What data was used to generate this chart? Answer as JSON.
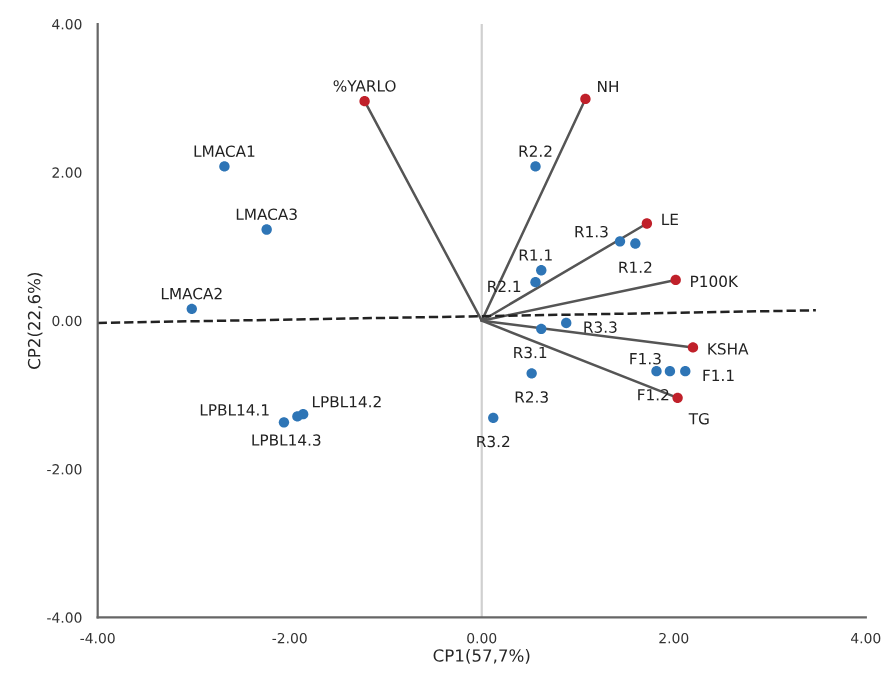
{
  "chart_data": {
    "type": "scatter",
    "xlabel": "CP1(57,7%)",
    "ylabel": "CP2(22,6%)",
    "xlim": [
      -4,
      4
    ],
    "ylim": [
      -4,
      4
    ],
    "xticks": [
      {
        "value": -4,
        "label": "-4.00"
      },
      {
        "value": -2,
        "label": "-2.00"
      },
      {
        "value": 0,
        "label": "0.00"
      },
      {
        "value": 2,
        "label": "2.00"
      },
      {
        "value": 4,
        "label": "4.00"
      }
    ],
    "yticks": [
      {
        "value": -4,
        "label": "-4.00"
      },
      {
        "value": -2,
        "label": "-2.00"
      },
      {
        "value": 0,
        "label": "0.00"
      },
      {
        "value": 2,
        "label": "2.00"
      },
      {
        "value": 4,
        "label": "4.00"
      }
    ],
    "grid": false,
    "legend": false,
    "ref_lines": [
      {
        "axis": "x",
        "value": 0,
        "color": "#d0d0d0"
      }
    ],
    "series": [
      {
        "type": "line",
        "color": "#555555",
        "x": [
          0,
          -1.22
        ],
        "values": [
          0,
          2.96
        ]
      },
      {
        "type": "line",
        "color": "#555555",
        "x": [
          0,
          1.08
        ],
        "values": [
          0,
          2.99
        ]
      },
      {
        "type": "line",
        "color": "#555555",
        "x": [
          0,
          1.72
        ],
        "values": [
          0,
          1.31
        ]
      },
      {
        "type": "line",
        "color": "#555555",
        "x": [
          0,
          2.02
        ],
        "values": [
          0,
          0.55
        ]
      },
      {
        "type": "line",
        "color": "#555555",
        "x": [
          0,
          2.2
        ],
        "values": [
          0,
          -0.36
        ]
      },
      {
        "type": "line",
        "color": "#555555",
        "x": [
          0,
          2.04
        ],
        "values": [
          0,
          -1.04
        ]
      },
      {
        "type": "line",
        "color": "#222222",
        "line_style": "dashed",
        "x": [
          -4,
          3.48
        ],
        "values": [
          -0.03,
          0.14
        ]
      },
      {
        "marker": "circle",
        "color": "#c0202a",
        "x": [
          -1.22,
          1.08,
          1.72,
          2.02,
          2.2,
          2.04
        ],
        "values": [
          2.96,
          2.99,
          1.31,
          0.55,
          -0.36,
          -1.04
        ]
      },
      {
        "marker": "circle",
        "color": "#2e75b6",
        "x": [
          -2.68,
          -2.24,
          -3.02,
          0.56,
          1.44,
          1.6,
          0.62,
          0.56,
          0.88,
          0.62,
          0.52,
          0.12,
          1.82,
          2.12,
          1.96,
          -1.86,
          -2.06,
          -1.92
        ],
        "values": [
          2.08,
          1.23,
          0.16,
          2.08,
          1.07,
          1.04,
          0.68,
          0.52,
          -0.03,
          -0.11,
          -0.71,
          -1.31,
          -0.68,
          -0.68,
          -0.68,
          -1.26,
          -1.37,
          -1.29
        ]
      }
    ],
    "annotations": [
      {
        "text": "%YARLO",
        "x": -1.22,
        "y": 2.96
      },
      {
        "text": "NH",
        "x": 1.08,
        "y": 2.99
      },
      {
        "text": "LE",
        "x": 1.72,
        "y": 1.31
      },
      {
        "text": "P100K",
        "x": 2.02,
        "y": 0.55
      },
      {
        "text": "KSHA",
        "x": 2.2,
        "y": -0.36
      },
      {
        "text": "TG",
        "x": 2.04,
        "y": -1.04
      },
      {
        "text": "LMACA1",
        "x": -2.68,
        "y": 2.08
      },
      {
        "text": "LMACA3",
        "x": -2.24,
        "y": 1.23
      },
      {
        "text": "LMACA2",
        "x": -3.02,
        "y": 0.16
      },
      {
        "text": "R2.2",
        "x": 0.56,
        "y": 2.08
      },
      {
        "text": "R1.3",
        "x": 1.44,
        "y": 1.07
      },
      {
        "text": "R1.2",
        "x": 1.6,
        "y": 1.04
      },
      {
        "text": "R1.1",
        "x": 0.62,
        "y": 0.68
      },
      {
        "text": "R2.1",
        "x": 0.56,
        "y": 0.52
      },
      {
        "text": "R3.3",
        "x": 0.88,
        "y": -0.03
      },
      {
        "text": "R3.1",
        "x": 0.62,
        "y": -0.11
      },
      {
        "text": "R2.3",
        "x": 0.52,
        "y": -0.71
      },
      {
        "text": "R3.2",
        "x": 0.12,
        "y": -1.31
      },
      {
        "text": "F1.3",
        "x": 1.82,
        "y": -0.68
      },
      {
        "text": "F1.1",
        "x": 2.12,
        "y": -0.68
      },
      {
        "text": "F1.2",
        "x": 1.96,
        "y": -0.68
      },
      {
        "text": "LPBL14.2",
        "x": -1.86,
        "y": -1.26
      },
      {
        "text": "LPBL14.1",
        "x": -2.06,
        "y": -1.37
      },
      {
        "text": "LPBL14.3",
        "x": -1.92,
        "y": -1.29
      }
    ]
  }
}
